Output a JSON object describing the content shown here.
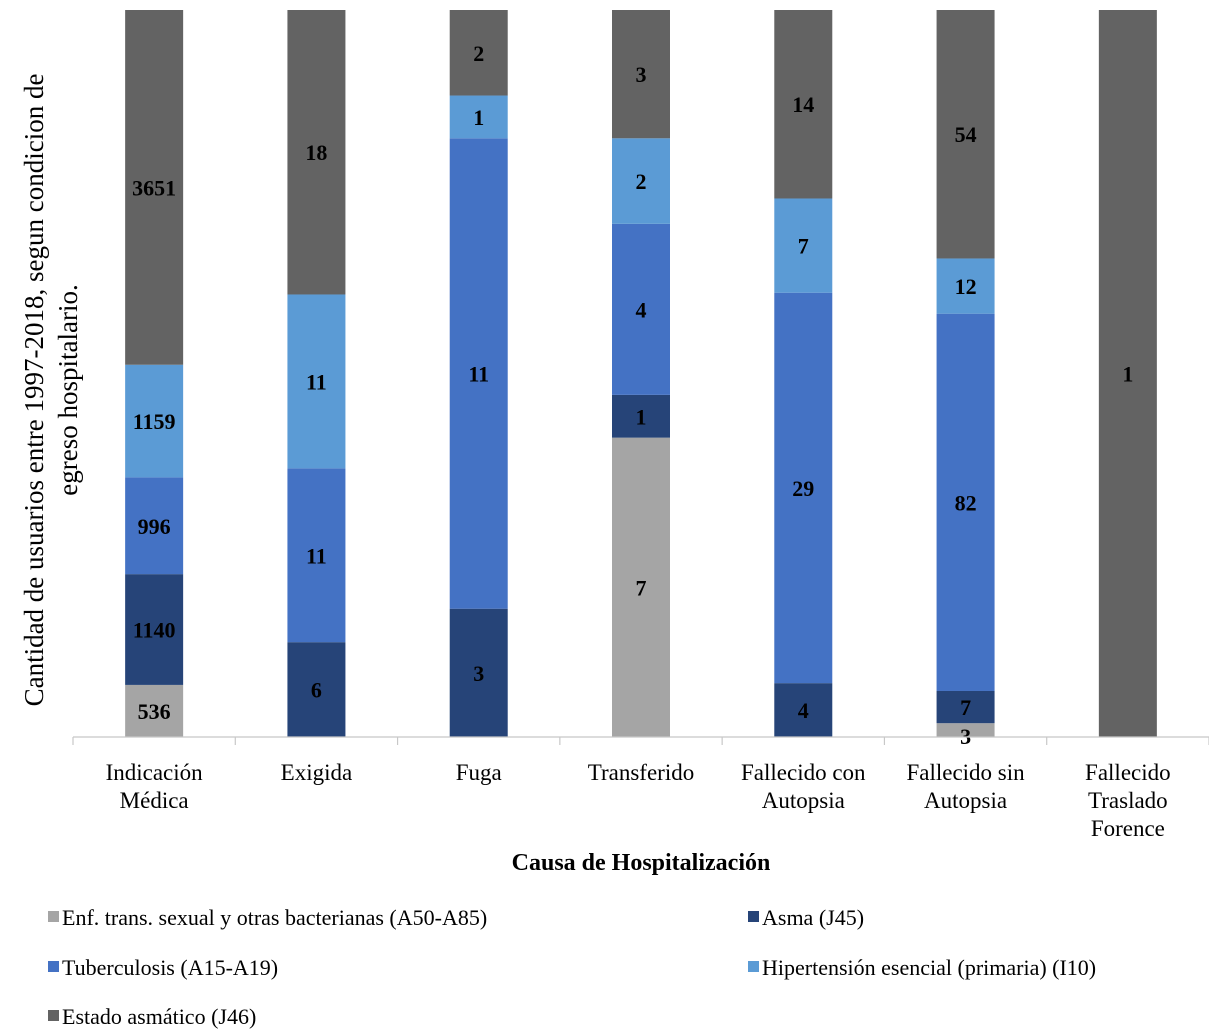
{
  "chart_data": {
    "type": "bar",
    "stacked": "percent",
    "xlabel": "Causa de Hospitalización",
    "ylabel": [
      "Cantidad de usuarios entre 1997-2018, segun condicion de",
      "egreso hospitalario."
    ],
    "categories": [
      [
        "Indicación",
        "Médica"
      ],
      [
        "Exigida"
      ],
      [
        "Fuga"
      ],
      [
        "Transferido"
      ],
      [
        "Fallecido con",
        "Autopsia"
      ],
      [
        "Fallecido sin",
        "Autopsia"
      ],
      [
        "Fallecido",
        "Traslado",
        "Forence"
      ]
    ],
    "series": [
      {
        "name": "Enf. trans. sexual y otras bacterianas (A50-A85)",
        "color": "#a5a5a5",
        "values": [
          536,
          0,
          0,
          7,
          0,
          3,
          0
        ]
      },
      {
        "name": "Asma (J45)",
        "color": "#264478",
        "values": [
          1140,
          6,
          3,
          1,
          4,
          7,
          0
        ]
      },
      {
        "name": "Tuberculosis (A15-A19)",
        "color": "#4472c4",
        "values": [
          996,
          11,
          11,
          4,
          29,
          82,
          0
        ]
      },
      {
        "name": "Hipertensión esencial (primaria) (I10)",
        "color": "#5b9bd5",
        "values": [
          1159,
          11,
          1,
          2,
          7,
          12,
          0
        ]
      },
      {
        "name": "Estado asmático (J46)",
        "color": "#636363",
        "values": [
          3651,
          18,
          2,
          3,
          14,
          54,
          1
        ]
      }
    ],
    "legend_position": "bottom",
    "grid": false
  }
}
